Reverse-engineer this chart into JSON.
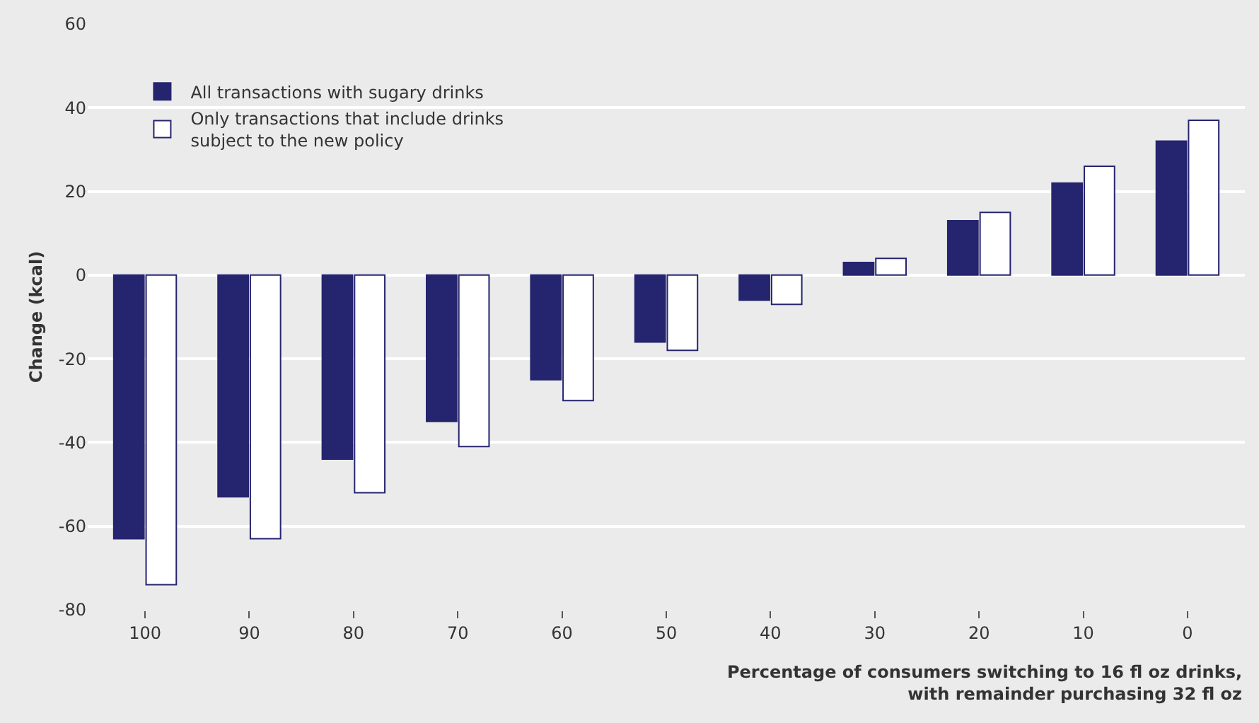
{
  "chart_data": {
    "type": "bar",
    "ylabel": "Change (kcal)",
    "xlabel": "Percentage of consumers switching to 16 fl oz drinks,\nwith remainder purchasing 32 fl oz",
    "categories": [
      "100",
      "90",
      "80",
      "70",
      "60",
      "50",
      "40",
      "30",
      "20",
      "10",
      "0"
    ],
    "series": [
      {
        "name": "All transactions with sugary drinks",
        "color": "#25246e",
        "values": [
          -63,
          -53,
          -44,
          -35,
          -25,
          -16,
          -6,
          3,
          13,
          22,
          32
        ]
      },
      {
        "name": "Only transactions that include drinks\nsubject to the new policy",
        "color": "#ffffff",
        "values": [
          -74,
          -63,
          -52,
          -41,
          -30,
          -18,
          -7,
          4,
          15,
          26,
          37
        ]
      }
    ],
    "ylim": [
      -80,
      60
    ],
    "yticks": [
      -80,
      -60,
      -40,
      -20,
      0,
      20,
      40,
      60
    ],
    "grid": "y",
    "legend": "top left"
  }
}
